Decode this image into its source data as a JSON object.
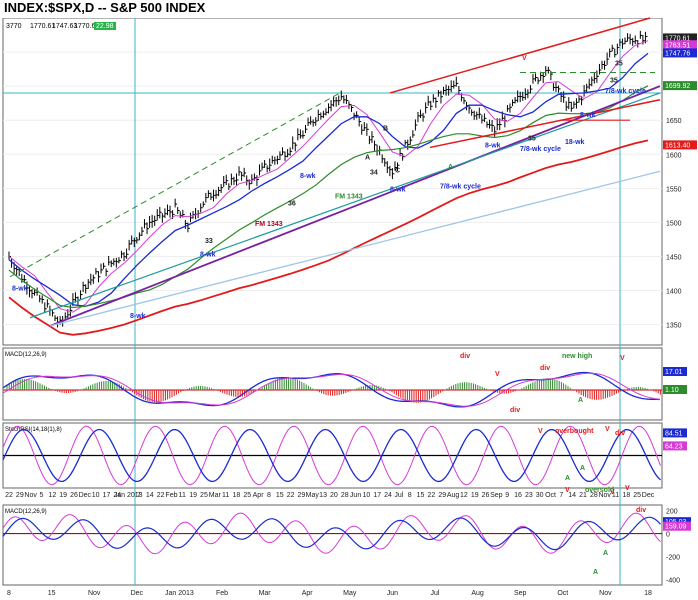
{
  "header": {
    "title": "INDEX:$SPX,D -- S&P 500 INDEX",
    "ohlc_values": [
      "1770.61",
      "1747.63",
      "1770.61",
      "22.98"
    ],
    "ohlc_prefix": "3770",
    "right_labels": [
      "1770.61",
      "1763.51",
      "1747.76",
      "1699.92",
      "1613.40"
    ]
  },
  "chart_data": [
    {
      "type": "line",
      "panel": "price",
      "y_ticks": [
        "1750",
        "1700",
        "1650",
        "1600",
        "1550",
        "1500",
        "1450",
        "1400",
        "1350"
      ],
      "ylim": [
        1320,
        1800
      ],
      "annotations": [
        "8-wk",
        "8-wk",
        "8-wk",
        "8-wk",
        "8-wk",
        "8-wk",
        "8-wk",
        "18-wk",
        "FM 1343",
        "FM 1343",
        "33",
        "34",
        "35",
        "35",
        "36",
        "A",
        "B",
        "C",
        "A",
        "7/8-wk cycle",
        "7/8-wk cycle",
        "7/8-wk cycle",
        "35",
        "V"
      ],
      "series": [
        {
          "values": [
            1450,
            1420,
            1395,
            1375,
            1350,
            1380,
            1410,
            1425,
            1440,
            1455,
            1480,
            1500,
            1510,
            1520,
            1495,
            1525,
            1545,
            1555,
            1570,
            1560,
            1580,
            1595,
            1610,
            1630,
            1655,
            1670,
            1685,
            1660,
            1630,
            1605,
            1575,
            1610,
            1650,
            1675,
            1690,
            1700,
            1670,
            1650,
            1635,
            1660,
            1685,
            1705,
            1725,
            1690,
            1665,
            1690,
            1720,
            1745,
            1765,
            1770,
            1765
          ]
        }
      ]
    },
    {
      "type": "bar",
      "panel": "macd",
      "title": "MACD(12,26,9)",
      "right_labels": [
        "17.01",
        "1.10"
      ],
      "annotations": [
        "div",
        "div",
        "div",
        "new high",
        "V",
        "V",
        "A"
      ]
    },
    {
      "type": "line",
      "panel": "stochrsi",
      "title": "StochRSI(14,18(1),8)",
      "right_labels": [
        "84.51",
        "64.23"
      ],
      "annotations": [
        "overbought",
        "oversold",
        "div",
        "V",
        "V",
        "A",
        "A"
      ]
    },
    {
      "type": "line",
      "panel": "macd2",
      "title": "MACD(12,26,9)",
      "y_ticks": [
        "200",
        "0",
        "-200",
        "-400"
      ],
      "right_labels": [
        "105.03",
        "159.09"
      ],
      "annotations": [
        "V",
        "V",
        "V",
        "div",
        "A",
        "A"
      ]
    }
  ],
  "x_axis": {
    "labels": [
      "22",
      "29",
      "Nov",
      "5",
      "12",
      "19",
      "26",
      "Dec",
      "10",
      "17",
      "24",
      "Jan 2013",
      "7",
      "14",
      "22",
      "Feb",
      "11",
      "19",
      "25",
      "Mar",
      "11",
      "18",
      "25",
      "Apr",
      "8",
      "15",
      "22",
      "29",
      "May",
      "13",
      "20",
      "28",
      "Jun",
      "10",
      "17",
      "24",
      "Jul",
      "8",
      "15",
      "22",
      "29",
      "Aug",
      "12",
      "19",
      "26",
      "Sep",
      "9",
      "16",
      "23",
      "30",
      "Oct",
      "7",
      "14",
      "21",
      "28",
      "Nov",
      "11",
      "18",
      "25",
      "Dec"
    ],
    "labels2": [
      "8",
      "15",
      "Nov",
      "Dec",
      "Jan 2013",
      "Feb",
      "Mar",
      "Apr",
      "May",
      "Jun",
      "Jul",
      "Aug",
      "Sep",
      "Oct",
      "Nov",
      "18"
    ]
  }
}
